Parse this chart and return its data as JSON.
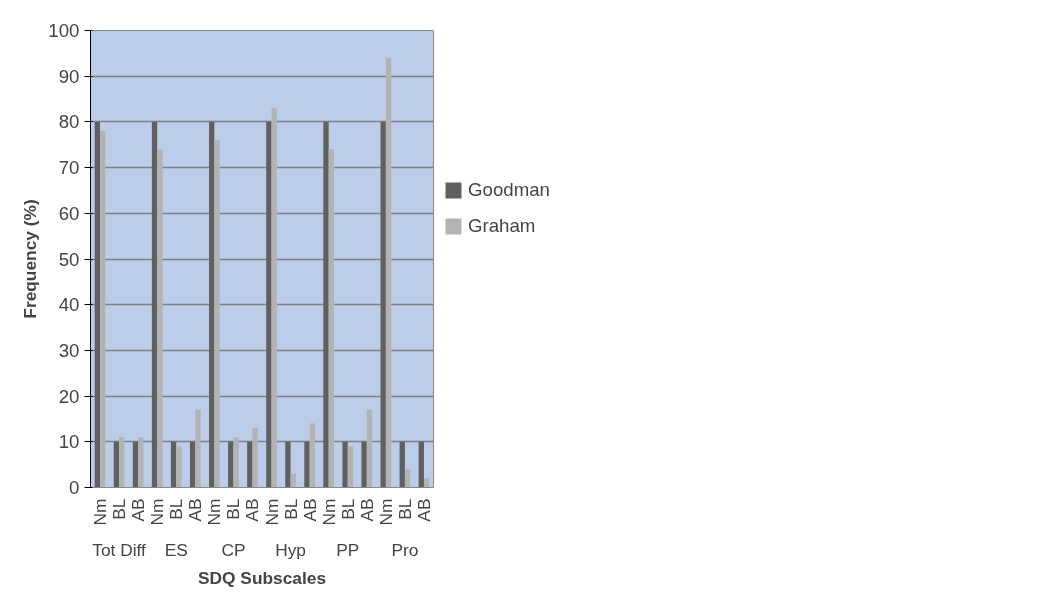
{
  "chart_data": {
    "type": "bar",
    "xlabel": "SDQ Subscales",
    "ylabel": "Frequency (%)",
    "categories": [
      "Nm",
      "BL",
      "AB",
      "Nm",
      "BL",
      "AB",
      "Nm",
      "BL",
      "AB",
      "Nm",
      "BL",
      "AB",
      "Nm",
      "BL",
      "AB",
      "Nm",
      "BL",
      "AB"
    ],
    "annotations": [
      "Tot Diff",
      "ES",
      "CP",
      "Hyp",
      "PP",
      "Pro"
    ],
    "series": [
      {
        "name": "Goodman",
        "color": "#606060",
        "values": [
          80,
          10,
          10,
          80,
          10,
          10,
          80,
          10,
          10,
          80,
          10,
          10,
          80,
          10,
          10,
          80,
          10,
          10
        ]
      },
      {
        "name": "Graham",
        "color": "#b3b3b3",
        "values": [
          78,
          11,
          11,
          74,
          9,
          17,
          76,
          11,
          13,
          83,
          3,
          14,
          74,
          9,
          17,
          94,
          4,
          2
        ]
      }
    ],
    "ylim": [
      0,
      100
    ],
    "yticks": [
      0,
      10,
      20,
      30,
      40,
      50,
      60,
      70,
      80,
      90,
      100
    ],
    "grid": "y",
    "legend": "top right"
  }
}
